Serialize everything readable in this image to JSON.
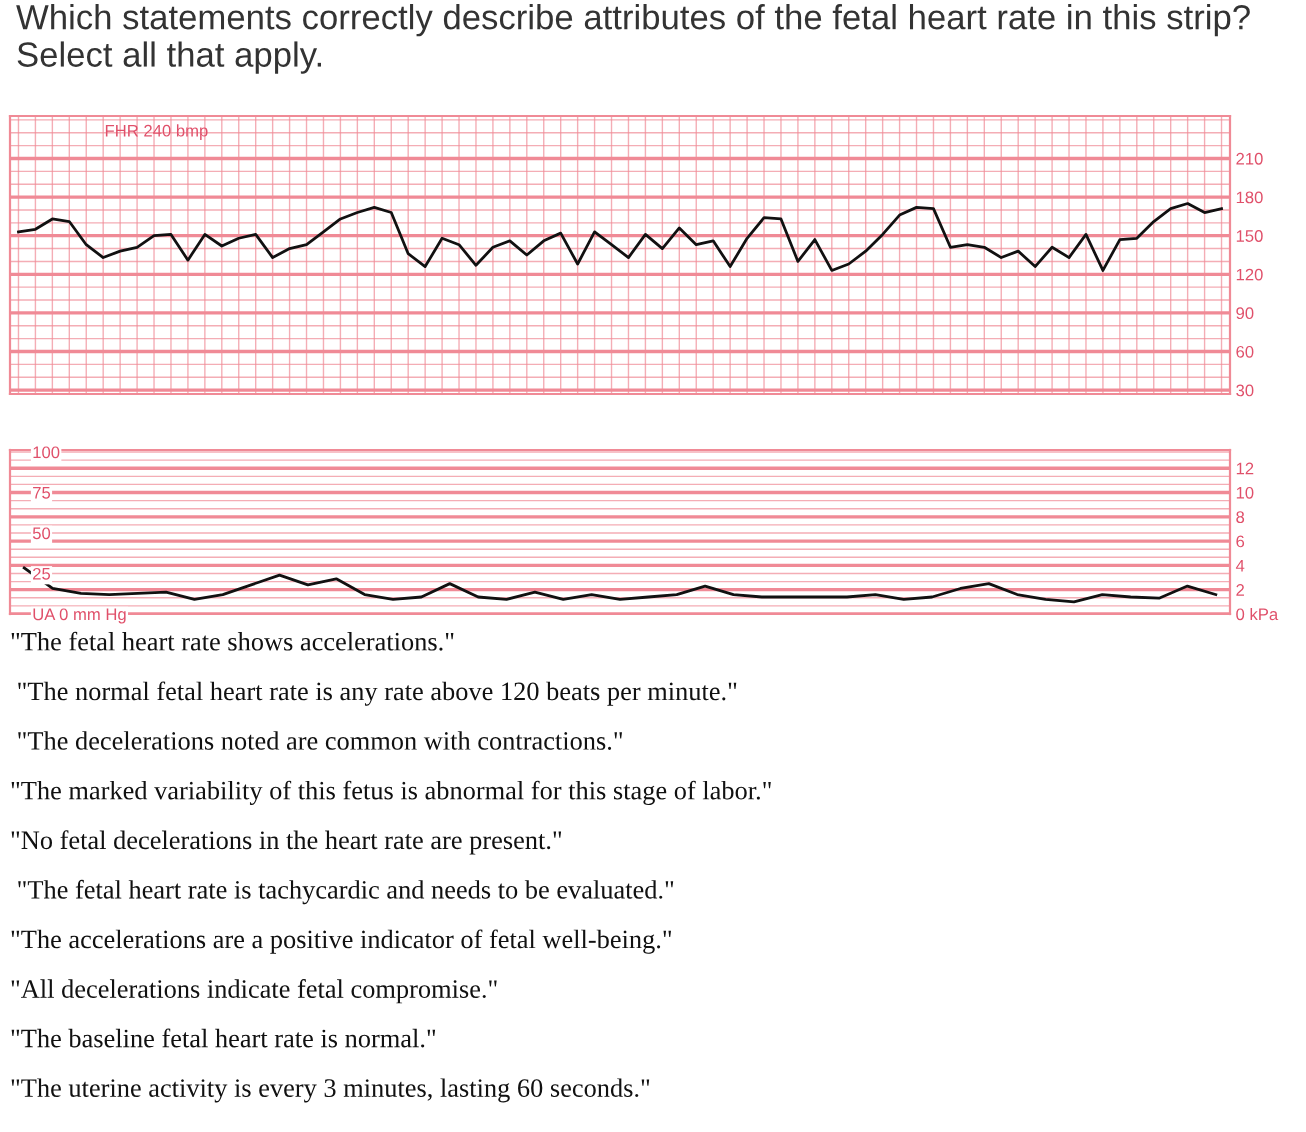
{
  "chart_data": [
    {
      "type": "line",
      "title": "Which statements correctly describe attributes of the fetal heart rate in this strip? Select all that apply.",
      "ylabel": "FHR 240 bmp",
      "categories": [
        null,
        null,
        null,
        null,
        null,
        null,
        null,
        null,
        null,
        null,
        null,
        null,
        null,
        null,
        null,
        null,
        null,
        null,
        null,
        null,
        null,
        null,
        null,
        null,
        null,
        null,
        null,
        null,
        null,
        null,
        null,
        null,
        null,
        null,
        null,
        null,
        null,
        null,
        null,
        null,
        null,
        null,
        null,
        null,
        null,
        null,
        null,
        null,
        null,
        null,
        null,
        null,
        null,
        null,
        null,
        null,
        null,
        null,
        null,
        null,
        null,
        null,
        null,
        null,
        null,
        null,
        null,
        null,
        null,
        null,
        null,
        null
      ],
      "series": [
        {
          "color": "#111111",
          "values": [
            153,
            155,
            163,
            161,
            143,
            133,
            138,
            141,
            150,
            151,
            131,
            151,
            142,
            148,
            151,
            133,
            140,
            143,
            153,
            163,
            168,
            172,
            168,
            136,
            126,
            148,
            143,
            127,
            141,
            146,
            135,
            146,
            152,
            128,
            153,
            143,
            133,
            151,
            140,
            156,
            143,
            146,
            126,
            148,
            164,
            163,
            130,
            147,
            123,
            128,
            138,
            151,
            166,
            172,
            171,
            141,
            143,
            141,
            133,
            138,
            126,
            141,
            133,
            151,
            123,
            147,
            148,
            161,
            171,
            175,
            168,
            171
          ]
        }
      ],
      "ylim": [
        27,
        243
      ],
      "yticks": [
        30,
        60,
        90,
        120,
        150,
        180,
        210
      ],
      "grid": true,
      "tick_labels": "y"
    },
    {
      "type": "line",
      "categories": [
        null,
        null,
        null,
        null,
        null,
        null,
        null,
        null,
        null,
        null,
        null,
        null,
        null,
        null,
        null,
        null,
        null,
        null,
        null,
        null,
        null,
        null,
        null,
        null,
        null,
        null,
        null,
        null,
        null,
        null,
        null,
        null,
        null,
        null,
        null,
        null,
        null,
        null,
        null,
        null,
        null,
        null,
        null
      ],
      "series": [
        {
          "color": "#111111",
          "values": [
            3.8,
            2.1,
            1.7,
            1.6,
            1.7,
            1.8,
            1.2,
            1.6,
            2.4,
            3.2,
            2.4,
            2.9,
            1.6,
            1.2,
            1.4,
            2.5,
            1.4,
            1.2,
            1.8,
            1.2,
            1.6,
            1.2,
            1.4,
            1.6,
            2.3,
            1.6,
            1.4,
            1.4,
            1.4,
            1.4,
            1.6,
            1.2,
            1.4,
            2.1,
            2.5,
            1.6,
            1.2,
            1.0,
            1.6,
            1.4,
            1.3,
            2.3,
            1.6
          ]
        }
      ],
      "ylim": [
        0,
        13.5
      ],
      "yticks": [
        {
          "value": 0,
          "label": "0 kPa"
        },
        2,
        4,
        6,
        8,
        10,
        12
      ],
      "y2lim": [
        0,
        101.25
      ],
      "y2ticks": [
        {
          "value": 0,
          "label": "UA 0 mm Hg"
        },
        25,
        50,
        75,
        100
      ],
      "grid": true,
      "tick_labels": "y",
      "annotations": [
        "\"The fetal heart rate shows accelerations.\"",
        " \"The normal fetal heart rate is any rate above 120 beats per minute.\"",
        " \"The decelerations noted are common with contractions.\"",
        "\"The marked variability of this fetus is abnormal for this stage of labor.\"",
        "\"No fetal decelerations in the heart rate are present.\"",
        " \"The fetal heart rate is tachycardic and needs to be evaluated.\"",
        "\"The accelerations are a positive indicator of fetal well-being.\"",
        "\"All decelerations indicate fetal compromise.\"",
        "\"The baseline fetal heart rate is normal.\"",
        "\"The uterine activity is every 3 minutes, lasting 60 seconds.\""
      ]
    }
  ]
}
